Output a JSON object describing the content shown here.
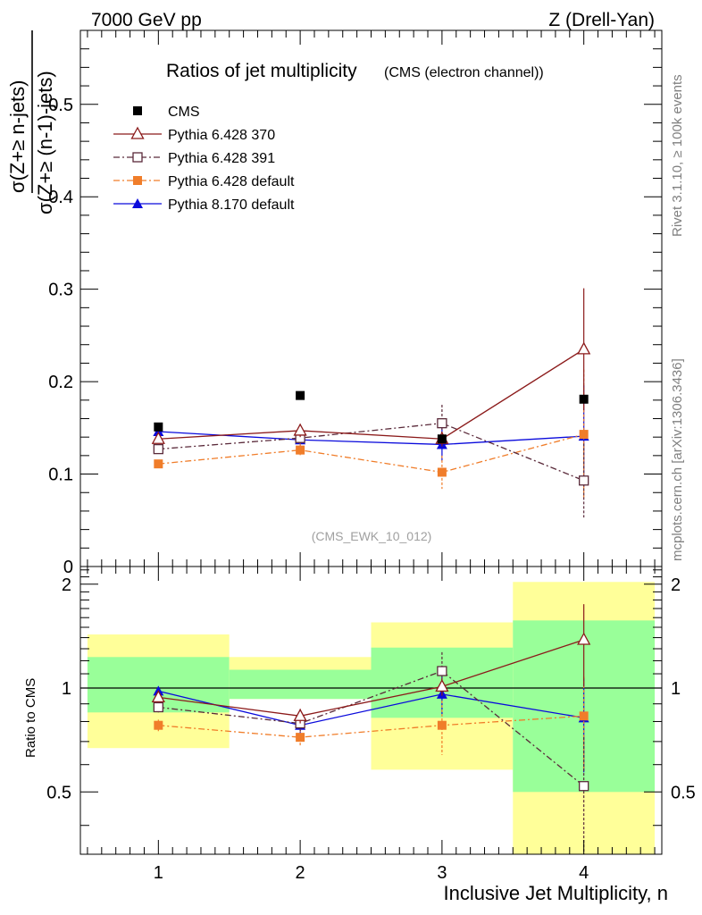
{
  "header": {
    "left": "7000 GeV pp",
    "right": "Z (Drell-Yan)"
  },
  "side_labels": {
    "rivet": "Rivet 3.1.10, ≥ 100k events",
    "mcplots": "mcplots.cern.ch [arXiv:1306.3436]"
  },
  "chart_data": {
    "type": "scatter",
    "title": "Ratios of jet multiplicity",
    "subtitle": "(CMS (electron channel))",
    "analysis_tag": "(CMS_EWK_10_012)",
    "xlabel": "Inclusive Jet Multiplicity, n",
    "ylabel_numerator": "σ(Z+≥ n-jets)",
    "ylabel_denominator": "σ(Z+≥ (n-1)-jets)",
    "ratio_ylabel": "Ratio to CMS",
    "xlim": [
      0.45,
      4.55
    ],
    "ylim": [
      0,
      0.58
    ],
    "ratio_ylim": [
      0.33,
      2.25
    ],
    "x_ticks": [
      "1",
      "2",
      "3",
      "4"
    ],
    "y_ticks": [
      "0",
      "0.1",
      "0.2",
      "0.3",
      "0.4",
      "0.5"
    ],
    "ratio_y_ticks": [
      "0.5",
      "1",
      "2"
    ],
    "legend_position": "top-left",
    "x": [
      1,
      2,
      3,
      4
    ],
    "series": [
      {
        "name": "CMS",
        "color": "#000000",
        "marker": "square-filled",
        "line": "none",
        "values": [
          0.151,
          0.185,
          0.138,
          0.181
        ]
      },
      {
        "name": "Pythia 6.428 370",
        "color": "#8b1a1a",
        "marker": "triangle-open",
        "line": "solid",
        "values": [
          0.138,
          0.147,
          0.138,
          0.235
        ],
        "errors": [
          0.004,
          0.007,
          0.008,
          0.066
        ],
        "ratio": [
          0.94,
          0.83,
          1.01,
          1.38
        ],
        "ratio_errors": [
          0.03,
          0.04,
          0.06,
          0.37
        ]
      },
      {
        "name": "Pythia 6.428 391",
        "color": "#5a2a3a",
        "marker": "square-open",
        "line": "dashdot",
        "values": [
          0.127,
          0.139,
          0.155,
          0.093
        ],
        "errors": [
          0.004,
          0.007,
          0.02,
          0.04
        ],
        "ratio": [
          0.88,
          0.79,
          1.12,
          0.52
        ],
        "ratio_errors": [
          0.03,
          0.04,
          0.15,
          0.2
        ]
      },
      {
        "name": "Pythia 6.428 default",
        "color": "#f07d2a",
        "marker": "square-filled",
        "line": "dashdot",
        "values": [
          0.111,
          0.126,
          0.102,
          0.143
        ],
        "errors": [
          0.004,
          0.007,
          0.018,
          0.07
        ],
        "ratio": [
          0.78,
          0.72,
          0.78,
          0.83
        ],
        "ratio_errors": [
          0.03,
          0.04,
          0.14,
          0.25
        ]
      },
      {
        "name": "Pythia 8.170 default",
        "color": "#0a0adc",
        "marker": "triangle-filled",
        "line": "solid",
        "values": [
          0.146,
          0.137,
          0.132,
          0.141
        ],
        "errors": [
          0.004,
          0.006,
          0.018,
          0.055
        ],
        "ratio": [
          0.98,
          0.78,
          0.96,
          0.82
        ],
        "ratio_errors": [
          0.03,
          0.04,
          0.12,
          0.25
        ]
      }
    ],
    "ratio_bands": [
      {
        "x0": 0.5,
        "x1": 1.5,
        "yellow": [
          0.67,
          1.43
        ],
        "green": [
          0.85,
          1.23
        ]
      },
      {
        "x0": 1.5,
        "x1": 2.5,
        "yellow": [
          0.93,
          1.23
        ],
        "green": [
          0.93,
          1.13
        ]
      },
      {
        "x0": 2.5,
        "x1": 3.5,
        "yellow": [
          0.58,
          1.55
        ],
        "green": [
          0.82,
          1.31
        ]
      },
      {
        "x0": 3.5,
        "x1": 4.5,
        "yellow": [
          0.33,
          2.03
        ],
        "green": [
          0.5,
          1.57
        ]
      }
    ]
  }
}
